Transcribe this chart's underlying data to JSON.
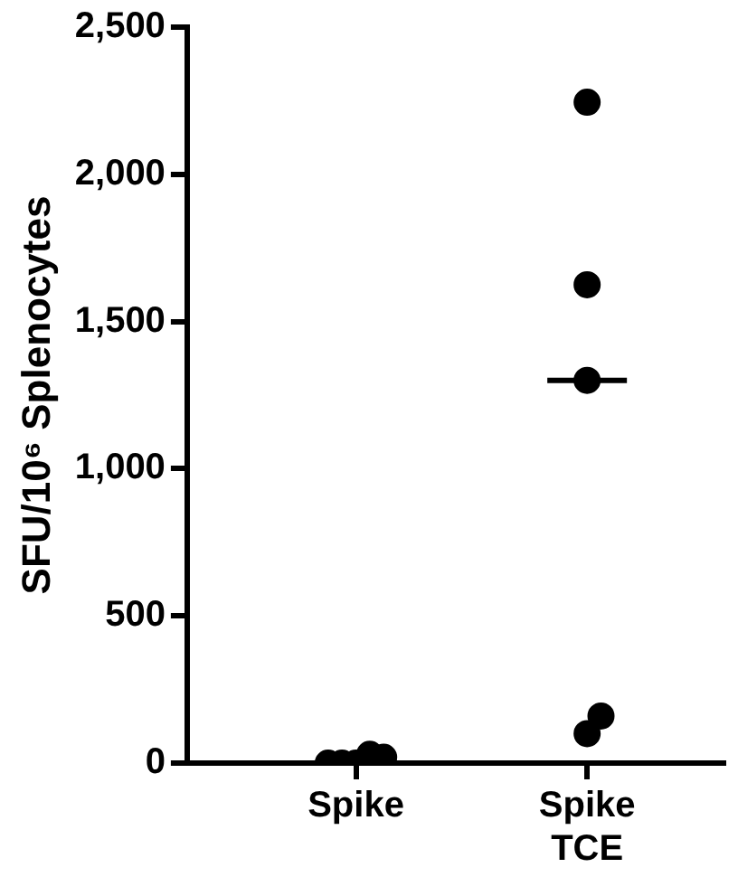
{
  "chart_data": {
    "type": "scatter",
    "ylabel": "SFU/10⁶ Splenocytes",
    "categories": [
      "Spike",
      "Spike TCE"
    ],
    "ylim": [
      0,
      2500
    ],
    "yticks": [
      0,
      500,
      {
        "value": 1000,
        "label": "1,000"
      },
      {
        "value": 1500,
        "label": "1,500"
      },
      {
        "value": 2000,
        "label": "2,000"
      },
      {
        "value": 2500,
        "label": "2,500"
      }
    ],
    "grid": false,
    "legend": false,
    "marker": "circle",
    "series": [
      {
        "color": "#000000",
        "x": [
          "Spike",
          "Spike",
          "Spike",
          "Spike",
          "Spike"
        ],
        "values": [
          0,
          30,
          0,
          20,
          0
        ]
      },
      {
        "color": "#000000",
        "x": [
          "Spike TCE",
          "Spike TCE",
          "Spike TCE",
          "Spike TCE",
          "Spike TCE"
        ],
        "values": [
          2245,
          1625,
          1300,
          100,
          160
        ]
      },
      {
        "type": "box",
        "color": "#000000",
        "boxes": [
          null,
          {
            "low": 1300,
            "q1": 1300,
            "median": 1300,
            "q3": 1300,
            "high": 1300
          }
        ]
      }
    ]
  }
}
